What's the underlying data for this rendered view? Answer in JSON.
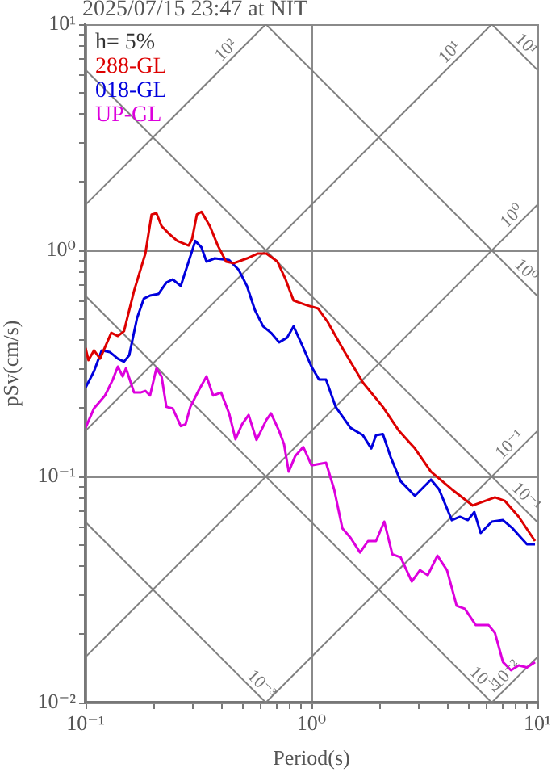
{
  "chart_data": {
    "type": "line",
    "title": "2025/07/15 23:47 at NIT",
    "xlabel": "Period(s)",
    "ylabel": "pSv(cm/s)",
    "log": "xy",
    "xlim": [
      0.1,
      10
    ],
    "ylim": [
      0.01,
      10
    ],
    "xticks": [
      {
        "value": 0.1,
        "label": "10⁻¹"
      },
      {
        "value": 0.2,
        "label": null
      },
      {
        "value": 0.3,
        "label": null
      },
      {
        "value": 0.4,
        "label": null
      },
      {
        "value": 0.5,
        "label": null
      },
      {
        "value": 0.6,
        "label": null
      },
      {
        "value": 0.7,
        "label": null
      },
      {
        "value": 0.8,
        "label": null
      },
      {
        "value": 0.9,
        "label": null
      },
      {
        "value": 1,
        "label": "10⁰"
      },
      {
        "value": 2,
        "label": null
      },
      {
        "value": 3,
        "label": null
      },
      {
        "value": 4,
        "label": null
      },
      {
        "value": 5,
        "label": null
      },
      {
        "value": 6,
        "label": null
      },
      {
        "value": 7,
        "label": null
      },
      {
        "value": 8,
        "label": null
      },
      {
        "value": 9,
        "label": null
      },
      {
        "value": 10,
        "label": "10¹"
      }
    ],
    "yticks": [
      {
        "value": 0.01,
        "label": "10⁻²"
      },
      {
        "value": 0.02,
        "label": null
      },
      {
        "value": 0.03,
        "label": null
      },
      {
        "value": 0.04,
        "label": null
      },
      {
        "value": 0.05,
        "label": null
      },
      {
        "value": 0.06,
        "label": null
      },
      {
        "value": 0.07,
        "label": null
      },
      {
        "value": 0.08,
        "label": null
      },
      {
        "value": 0.09,
        "label": null
      },
      {
        "value": 0.1,
        "label": "10⁻¹"
      },
      {
        "value": 0.2,
        "label": null
      },
      {
        "value": 0.3,
        "label": null
      },
      {
        "value": 0.4,
        "label": null
      },
      {
        "value": 0.5,
        "label": null
      },
      {
        "value": 0.6,
        "label": null
      },
      {
        "value": 0.7,
        "label": null
      },
      {
        "value": 0.8,
        "label": null
      },
      {
        "value": 0.9,
        "label": null
      },
      {
        "value": 1,
        "label": "10⁰"
      },
      {
        "value": 2,
        "label": null
      },
      {
        "value": 3,
        "label": null
      },
      {
        "value": 4,
        "label": null
      },
      {
        "value": 5,
        "label": null
      },
      {
        "value": 6,
        "label": null
      },
      {
        "value": 7,
        "label": null
      },
      {
        "value": 8,
        "label": null
      },
      {
        "value": 9,
        "label": null
      },
      {
        "value": 10,
        "label": "10¹"
      }
    ],
    "grid": true,
    "legend": "top left",
    "marker": "none",
    "annotations": [
      "h= 5%",
      {
        "text": "10²",
        "x": 0.45,
        "y": 7.16
      },
      {
        "text": "10¹",
        "x": 4.4,
        "y": 7
      },
      {
        "text": "10¹",
        "x": 8.3,
        "y": 7.57
      },
      {
        "text": "10⁰",
        "x": 8.3,
        "y": 1.32
      },
      {
        "text": "10⁰",
        "x": 8.3,
        "y": 0.757
      },
      {
        "text": "10⁻¹",
        "x": 8.1,
        "y": 0.129
      },
      {
        "text": "10⁻¹",
        "x": 8.3,
        "y": 0.0757
      },
      {
        "text": "10⁻²",
        "x": 7.8,
        "y": 0.0124
      },
      {
        "text": "10⁻²",
        "x": 5.4,
        "y": 0.0116
      },
      {
        "text": "10⁻³",
        "x": 0.56,
        "y": 0.0112
      }
    ],
    "series": [
      {
        "name": "288-GL",
        "color": "#dd0000",
        "x": [
          0.1,
          0.103,
          0.109,
          0.116,
          0.122,
          0.13,
          0.139,
          0.148,
          0.164,
          0.184,
          0.196,
          0.206,
          0.217,
          0.235,
          0.255,
          0.286,
          0.296,
          0.311,
          0.326,
          0.355,
          0.385,
          0.419,
          0.454,
          0.518,
          0.58,
          0.632,
          0.707,
          0.768,
          0.833,
          0.951,
          1.07,
          1.18,
          1.39,
          1.69,
          2.07,
          2.44,
          2.87,
          3.38,
          4.18,
          5.17,
          6.49,
          7.16,
          8.27,
          9.76
        ],
        "values": [
          0.37,
          0.327,
          0.361,
          0.332,
          0.373,
          0.432,
          0.418,
          0.439,
          0.662,
          0.968,
          1.44,
          1.46,
          1.28,
          1.18,
          1.1,
          1.05,
          1.12,
          1.44,
          1.48,
          1.28,
          1.05,
          0.891,
          0.877,
          0.921,
          0.968,
          0.968,
          0.891,
          0.744,
          0.6,
          0.572,
          0.553,
          0.482,
          0.361,
          0.26,
          0.203,
          0.159,
          0.133,
          0.105,
          0.0877,
          0.0744,
          0.0808,
          0.0781,
          0.0663,
          0.0518
        ]
      },
      {
        "name": "018-GL",
        "color": "#0000dd",
        "x": [
          0.1,
          0.109,
          0.118,
          0.128,
          0.139,
          0.148,
          0.156,
          0.169,
          0.181,
          0.193,
          0.21,
          0.228,
          0.243,
          0.264,
          0.286,
          0.306,
          0.326,
          0.343,
          0.373,
          0.432,
          0.476,
          0.518,
          0.562,
          0.611,
          0.662,
          0.719,
          0.78,
          0.833,
          0.905,
          1.0,
          1.08,
          1.16,
          1.28,
          1.49,
          1.69,
          1.84,
          1.93,
          2.07,
          2.24,
          2.48,
          2.87,
          3.38,
          3.67,
          4.18,
          4.54,
          4.92,
          5.26,
          5.61,
          6.28,
          7.04,
          7.76,
          8.99,
          9.76
        ],
        "values": [
          0.247,
          0.292,
          0.361,
          0.355,
          0.332,
          0.322,
          0.343,
          0.501,
          0.611,
          0.631,
          0.641,
          0.72,
          0.744,
          0.696,
          0.891,
          1.1,
          1.03,
          0.891,
          0.921,
          0.906,
          0.821,
          0.696,
          0.544,
          0.461,
          0.432,
          0.392,
          0.411,
          0.461,
          0.385,
          0.306,
          0.268,
          0.268,
          0.203,
          0.164,
          0.152,
          0.133,
          0.152,
          0.154,
          0.122,
          0.0953,
          0.0821,
          0.0968,
          0.0877,
          0.0641,
          0.0663,
          0.0641,
          0.0696,
          0.0562,
          0.0631,
          0.0641,
          0.059,
          0.0501,
          0.0501
        ]
      },
      {
        "name": "UP-GL",
        "color": "#dd00dd",
        "x": [
          0.1,
          0.109,
          0.122,
          0.132,
          0.139,
          0.146,
          0.151,
          0.164,
          0.175,
          0.184,
          0.193,
          0.206,
          0.217,
          0.228,
          0.243,
          0.264,
          0.277,
          0.291,
          0.316,
          0.343,
          0.367,
          0.398,
          0.432,
          0.461,
          0.493,
          0.527,
          0.571,
          0.632,
          0.662,
          0.719,
          0.756,
          0.793,
          0.847,
          0.92,
          1.0,
          1.16,
          1.26,
          1.37,
          1.49,
          1.64,
          1.78,
          1.93,
          2.1,
          2.28,
          2.48,
          2.78,
          3.02,
          3.27,
          3.61,
          3.98,
          4.39,
          4.77,
          5.34,
          6.08,
          6.49,
          7.04,
          7.64,
          8.27,
          8.99,
          9.76
        ],
        "values": [
          0.164,
          0.2,
          0.228,
          0.268,
          0.306,
          0.277,
          0.301,
          0.235,
          0.235,
          0.239,
          0.228,
          0.301,
          0.277,
          0.203,
          0.2,
          0.167,
          0.17,
          0.203,
          0.239,
          0.277,
          0.228,
          0.235,
          0.19,
          0.146,
          0.17,
          0.187,
          0.145,
          0.178,
          0.19,
          0.159,
          0.139,
          0.105,
          0.123,
          0.135,
          0.112,
          0.115,
          0.0877,
          0.059,
          0.0535,
          0.0461,
          0.0518,
          0.0518,
          0.0631,
          0.0453,
          0.0439,
          0.0343,
          0.0385,
          0.0366,
          0.0446,
          0.0385,
          0.0268,
          0.026,
          0.022,
          0.022,
          0.0203,
          0.0151,
          0.0139,
          0.0146,
          0.0143,
          0.0151
        ]
      },
      {
        "color": "#808080",
        "x": [
          0.1,
          0.628
        ],
        "values": [
          1.59,
          10
        ]
      },
      {
        "color": "#808080",
        "x": [
          0.1,
          6.28
        ],
        "values": [
          0.159,
          10
        ]
      },
      {
        "color": "#808080",
        "x": [
          0.1,
          10
        ],
        "values": [
          0.0159,
          1.59
        ]
      },
      {
        "color": "#808080",
        "x": [
          0.628,
          10
        ],
        "values": [
          0.01,
          0.159
        ]
      },
      {
        "color": "#808080",
        "x": [
          6.28,
          10
        ],
        "values": [
          0.01,
          0.0159
        ]
      },
      {
        "color": "#808080",
        "x": [
          6.28,
          10
        ],
        "values": [
          10,
          6.28
        ]
      },
      {
        "color": "#808080",
        "x": [
          0.628,
          10
        ],
        "values": [
          10,
          0.628
        ]
      },
      {
        "color": "#808080",
        "x": [
          0.1,
          10
        ],
        "values": [
          6.28,
          0.0628
        ]
      },
      {
        "color": "#808080",
        "x": [
          0.1,
          6.28
        ],
        "values": [
          0.628,
          0.01
        ]
      },
      {
        "color": "#808080",
        "x": [
          0.1,
          0.628
        ],
        "values": [
          0.0628,
          0.01
        ]
      }
    ]
  }
}
